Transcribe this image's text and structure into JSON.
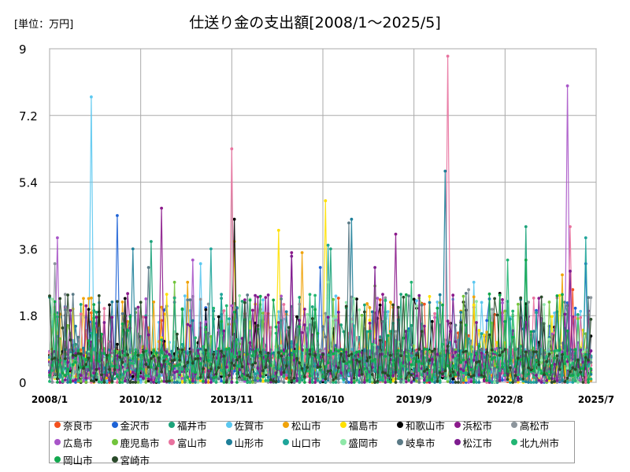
{
  "unit_label": "[単位：万円]",
  "chart_data": {
    "type": "line",
    "title": "仕送り金の支出額[2008/1～2025/5]",
    "xlabel": "",
    "ylabel": "",
    "ylim": [
      0,
      9
    ],
    "y_ticks": [
      "0",
      "1.8",
      "3.6",
      "5.4",
      "7.2",
      "9"
    ],
    "x_ticks": [
      "2008/1",
      "2010/12",
      "2013/11",
      "2016/10",
      "2019/9",
      "2022/8",
      "2025/7"
    ],
    "x_range": [
      "2008/1",
      "2025/7"
    ],
    "grid": true,
    "legend_position": "bottom",
    "series": [
      {
        "name": "奈良市",
        "color": "#F4511E",
        "peaks": [
          [
            "2009/3",
            1.4
          ],
          [
            "2015/6",
            1.2
          ],
          [
            "2024/10",
            2.5
          ]
        ]
      },
      {
        "name": "金沢市",
        "color": "#1E63D6",
        "peaks": [
          [
            "2010/3",
            4.5
          ],
          [
            "2016/9",
            3.1
          ],
          [
            "2025/3",
            3.2
          ]
        ]
      },
      {
        "name": "福井市",
        "color": "#1BA37A",
        "peaks": [
          [
            "2011/4",
            3.8
          ],
          [
            "2017/1",
            3.6
          ],
          [
            "2023/4",
            4.2
          ]
        ]
      },
      {
        "name": "佐賀市",
        "color": "#5BC8F0",
        "peaks": [
          [
            "2009/5",
            7.7
          ],
          [
            "2012/11",
            3.2
          ],
          [
            "2021/8",
            2.7
          ]
        ]
      },
      {
        "name": "松山市",
        "color": "#F0A30A",
        "peaks": [
          [
            "2012/6",
            2.7
          ],
          [
            "2016/2",
            3.5
          ],
          [
            "2024/6",
            2.9
          ]
        ]
      },
      {
        "name": "福島市",
        "color": "#FFE000",
        "peaks": [
          [
            "2013/12",
            3.8
          ],
          [
            "2015/5",
            4.1
          ],
          [
            "2016/11",
            4.9
          ]
        ]
      },
      {
        "name": "和歌山市",
        "color": "#000000",
        "peaks": [
          [
            "2013/12",
            4.4
          ],
          [
            "2014/8",
            1.6
          ],
          [
            "2022/6",
            2.4
          ]
        ]
      },
      {
        "name": "浜松市",
        "color": "#8B1A8B",
        "peaks": [
          [
            "2011/8",
            4.7
          ],
          [
            "2015/10",
            3.5
          ],
          [
            "2019/2",
            4.0
          ]
        ]
      },
      {
        "name": "高松市",
        "color": "#8C959C",
        "peaks": [
          [
            "2008/3",
            3.2
          ],
          [
            "2017/9",
            2.3
          ],
          [
            "2021/6",
            2.5
          ]
        ]
      },
      {
        "name": "広島市",
        "color": "#A855C8",
        "peaks": [
          [
            "2008/4",
            3.9
          ],
          [
            "2012/8",
            3.3
          ],
          [
            "2024/8",
            8.0
          ]
        ]
      },
      {
        "name": "鹿児島市",
        "color": "#72C43C",
        "peaks": [
          [
            "2012/1",
            2.7
          ],
          [
            "2018/6",
            2.6
          ],
          [
            "2022/3",
            1.6
          ]
        ]
      },
      {
        "name": "富山市",
        "color": "#E8729E",
        "peaks": [
          [
            "2013/11",
            6.3
          ],
          [
            "2020/10",
            8.8
          ],
          [
            "2024/9",
            4.2
          ]
        ]
      },
      {
        "name": "山形市",
        "color": "#1E7F99",
        "peaks": [
          [
            "2010/9",
            3.6
          ],
          [
            "2017/9",
            4.4
          ],
          [
            "2020/9",
            5.7
          ]
        ]
      },
      {
        "name": "山口市",
        "color": "#1FA59A",
        "peaks": [
          [
            "2013/3",
            3.6
          ],
          [
            "2016/12",
            3.7
          ],
          [
            "2025/3",
            3.9
          ]
        ]
      },
      {
        "name": "盛岡市",
        "color": "#8FE8A8",
        "peaks": [
          [
            "2014/10",
            2.1
          ],
          [
            "2016/12",
            2.7
          ],
          [
            "2023/11",
            2.1
          ]
        ]
      },
      {
        "name": "岐阜市",
        "color": "#5A7A86",
        "peaks": [
          [
            "2011/3",
            3.1
          ],
          [
            "2017/8",
            4.3
          ],
          [
            "2021/5",
            2.4
          ]
        ]
      },
      {
        "name": "松江市",
        "color": "#7E1C8F",
        "peaks": [
          [
            "2015/10",
            3.4
          ],
          [
            "2018/6",
            3.1
          ],
          [
            "2024/9",
            3.0
          ]
        ]
      },
      {
        "name": "北九州市",
        "color": "#22B573",
        "peaks": [
          [
            "2013/4",
            2.0
          ],
          [
            "2019/8",
            2.7
          ],
          [
            "2022/9",
            3.3
          ]
        ]
      },
      {
        "name": "岡山市",
        "color": "#12A84E",
        "peaks": [
          [
            "2009/6",
            2.1
          ],
          [
            "2016/1",
            1.5
          ],
          [
            "2023/4",
            3.3
          ]
        ]
      },
      {
        "name": "宮崎市",
        "color": "#2A4A2A",
        "peaks": [
          [
            "2012/2",
            1.3
          ],
          [
            "2018/2",
            1.9
          ],
          [
            "2025/5",
            1.7
          ]
        ]
      }
    ]
  }
}
